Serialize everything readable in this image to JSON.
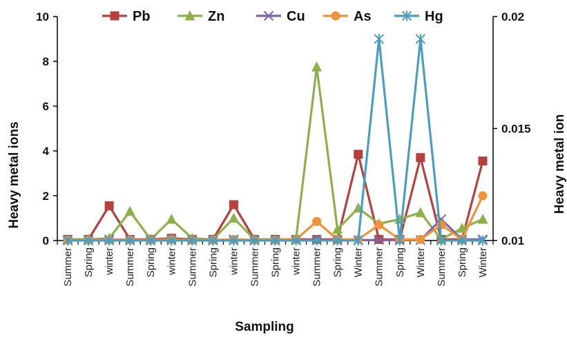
{
  "chart_data": {
    "type": "line",
    "title": "",
    "xlabel": "Sampling",
    "ylabel": "Heavy metal ions",
    "ylabel_right": "Heavy metal ion",
    "ylim": [
      0,
      10
    ],
    "y_ticks": [
      "0",
      "2",
      "4",
      "6",
      "8",
      "10"
    ],
    "ylim_right": [
      0.01,
      0.02
    ],
    "y_right_ticks": [
      "0.01",
      "0.015",
      "0.02"
    ],
    "grid": false,
    "legend_position": "top",
    "categories": [
      "Summer",
      "Spring",
      "winter",
      "Summer",
      "Spring",
      "winter",
      "Summer",
      "Spring",
      "winter",
      "Summer",
      "Spring",
      "winter",
      "Summer",
      "Spring",
      "Winter",
      "Summer",
      "Spring",
      "Winter",
      "Summer",
      "Spring",
      "Winter"
    ],
    "series": [
      {
        "name": "Pb",
        "axis": "left",
        "marker": "square",
        "color": "#b5413f",
        "values": [
          0.05,
          0.05,
          1.55,
          0.05,
          0.05,
          0.1,
          0.05,
          0.05,
          1.6,
          0.05,
          0.05,
          0.05,
          0.05,
          0.05,
          3.85,
          0.05,
          0.05,
          3.7,
          0.05,
          0.05,
          3.55
        ]
      },
      {
        "name": "Zn",
        "axis": "left",
        "marker": "triangle",
        "color": "#8eb04a",
        "values": [
          0.05,
          0.05,
          0.1,
          1.3,
          0.05,
          0.95,
          0.1,
          0.05,
          1.0,
          0.05,
          0.05,
          0.05,
          7.75,
          0.5,
          1.45,
          0.75,
          0.95,
          1.25,
          0.05,
          0.55,
          0.95
        ]
      },
      {
        "name": "Cu",
        "axis": "left",
        "marker": "x",
        "color": "#7b64a8",
        "values": [
          0.02,
          0.02,
          0.05,
          0.03,
          0.02,
          0.05,
          0.02,
          0.02,
          0.05,
          0.02,
          0.02,
          0.02,
          0.02,
          0.02,
          0.02,
          0.02,
          0.02,
          0.02,
          0.95,
          0.05,
          0.05
        ]
      },
      {
        "name": "As",
        "axis": "left",
        "marker": "circle",
        "color": "#f0923a",
        "values": [
          0.02,
          0.02,
          0.03,
          0.03,
          0.02,
          0.05,
          0.02,
          0.02,
          0.05,
          0.02,
          0.02,
          0.05,
          0.85,
          0.05,
          0.05,
          0.7,
          0.05,
          0.05,
          0.7,
          0.05,
          2.0
        ]
      },
      {
        "name": "Hg",
        "axis": "right",
        "marker": "asterisk",
        "color": "#4a9fc0",
        "values": [
          0.01,
          0.01,
          0.01,
          0.01,
          0.01,
          0.01,
          0.01,
          0.01,
          0.01,
          0.01,
          0.01,
          0.01,
          0.01,
          0.01,
          0.01,
          0.019,
          0.01,
          0.019,
          0.01,
          0.01,
          0.01
        ]
      }
    ]
  }
}
